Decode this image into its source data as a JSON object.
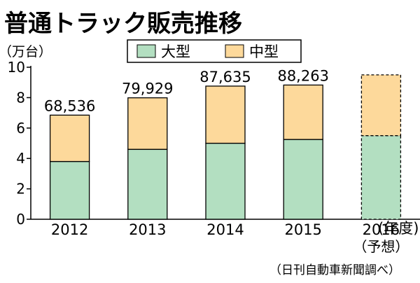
{
  "chart_data": {
    "type": "bar",
    "stacked": true,
    "title": "普通トラック販売推移",
    "y_unit_label": "（万台）",
    "x_unit_label": "(年度)",
    "source": "（日刊自動車新聞調べ）",
    "ylim": [
      0,
      10
    ],
    "yticks": [
      "0",
      "2",
      "4",
      "6",
      "8",
      "10"
    ],
    "grid": false,
    "legend_position": "top",
    "categories": [
      {
        "label": "2012",
        "sublabel": "",
        "total_label": "68,536",
        "forecast": false
      },
      {
        "label": "2013",
        "sublabel": "",
        "total_label": "79,929",
        "forecast": false
      },
      {
        "label": "2014",
        "sublabel": "",
        "total_label": "87,635",
        "forecast": false
      },
      {
        "label": "2015",
        "sublabel": "",
        "total_label": "88,263",
        "forecast": false
      },
      {
        "label": "2016",
        "sublabel": "（予想）",
        "total_label": "",
        "forecast": true
      }
    ],
    "series": [
      {
        "name": "大型",
        "color": "#b3dfc1",
        "values": [
          3.8,
          4.6,
          5.0,
          5.25,
          5.5
        ]
      },
      {
        "name": "中型",
        "color": "#fdd99b",
        "values": [
          3.05,
          3.39,
          3.76,
          3.58,
          4.0
        ]
      }
    ]
  }
}
